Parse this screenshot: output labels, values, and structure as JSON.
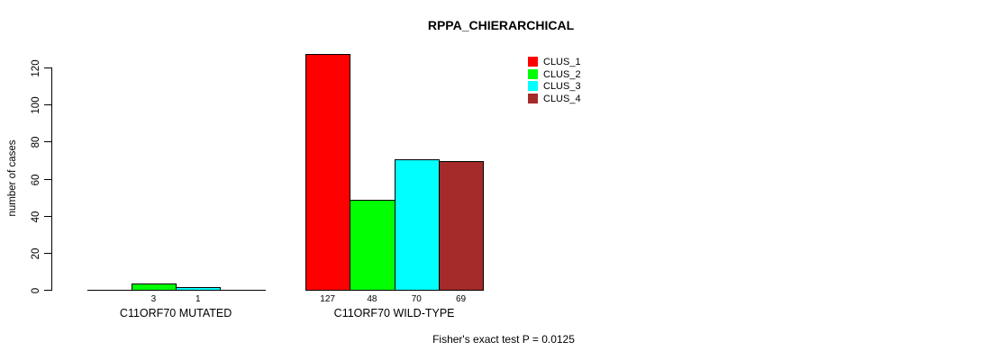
{
  "chart_data": {
    "type": "bar",
    "title": "RPPA_CHIERARCHICAL",
    "xlabel": "",
    "ylabel": "number of cases",
    "categories": [
      "C11ORF70 MUTATED",
      "C11ORF70 WILD-TYPE"
    ],
    "series": [
      {
        "name": "CLUS_1",
        "color": "#FF0000",
        "values": [
          0,
          127
        ]
      },
      {
        "name": "CLUS_2",
        "color": "#00FF00",
        "values": [
          3,
          48
        ]
      },
      {
        "name": "CLUS_3",
        "color": "#00FFFF",
        "values": [
          1,
          70
        ]
      },
      {
        "name": "CLUS_4",
        "color": "#A52A2A",
        "values": [
          0,
          69
        ]
      }
    ],
    "bar_value_labels": [
      [
        "",
        "3",
        "1",
        ""
      ],
      [
        "127",
        "48",
        "70",
        "69"
      ]
    ],
    "yticks": [
      0,
      20,
      40,
      60,
      80,
      100,
      120
    ],
    "ylim": [
      0,
      127
    ],
    "grid": false,
    "legend_position": "top-right",
    "legend_entries": [
      "CLUS_1",
      "CLUS_2",
      "CLUS_3",
      "CLUS_4"
    ],
    "annotation": "Fisher's exact test P = 0.0125"
  }
}
